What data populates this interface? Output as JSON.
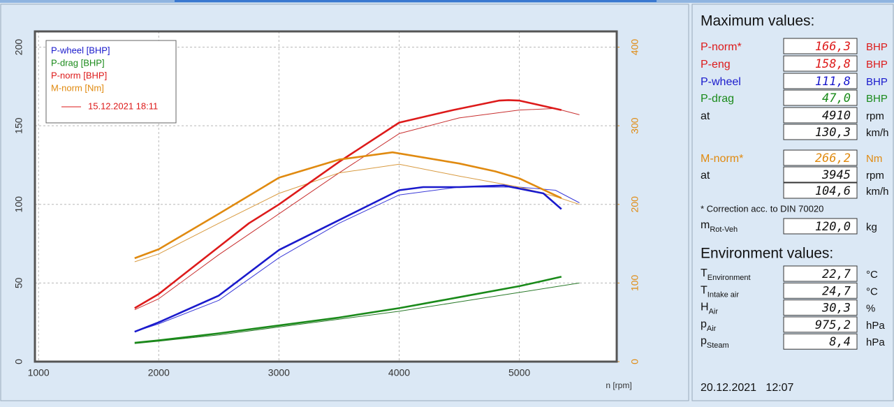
{
  "chart_data": {
    "type": "line",
    "xlabel": "n [rpm]",
    "xlim": [
      970,
      5810
    ],
    "xticks": [
      1000,
      2000,
      3000,
      4000,
      5000
    ],
    "ylim": [
      0,
      210
    ],
    "yticks": [
      0,
      50,
      100,
      150,
      200
    ],
    "y2lim": [
      0,
      420
    ],
    "y2ticks": [
      0,
      100,
      200,
      300,
      400
    ],
    "grid": true,
    "legend_position": "upper left",
    "series": [
      {
        "name": "P-wheel [BHP]",
        "color": "#1a1acc",
        "x": [
          1800,
          2000,
          2500,
          3000,
          3500,
          4000,
          4200,
          4500,
          4870,
          5200,
          5350
        ],
        "values": [
          19,
          25,
          42,
          71,
          90,
          109,
          111,
          111,
          112,
          107,
          97
        ]
      },
      {
        "name": "P-drag [BHP]",
        "color": "#1a8a1a",
        "x": [
          1800,
          2000,
          2500,
          3000,
          3500,
          4000,
          4500,
          5000,
          5350
        ],
        "values": [
          12,
          13.5,
          18,
          23,
          28,
          34,
          41,
          48,
          54
        ]
      },
      {
        "name": "P-norm [BHP]",
        "color": "#dd1a1a",
        "x": [
          1800,
          2000,
          2500,
          2750,
          3000,
          3500,
          4000,
          4450,
          4830,
          4910,
          5000,
          5350
        ],
        "values": [
          34,
          43,
          73,
          88,
          100,
          127,
          152,
          160,
          166,
          166.3,
          166,
          160
        ]
      },
      {
        "name": "M-norm [Nm]",
        "color": "#e08a10",
        "axis": "y2",
        "x": [
          1800,
          2000,
          2500,
          3000,
          3500,
          3945,
          4500,
          4800,
          5000,
          5350
        ],
        "values": [
          131.5,
          143,
          188,
          234,
          257,
          266.2,
          252,
          242,
          233,
          208
        ]
      }
    ],
    "comparison": {
      "name": "15.12.2021 18:11",
      "color": "#dd1a1a",
      "series": [
        {
          "color": "#3a3ad8",
          "x": [
            1800,
            2000,
            2500,
            3000,
            3500,
            4000,
            4500,
            5000,
            5300,
            5500
          ],
          "values": [
            19,
            24,
            39,
            66,
            88,
            106,
            111,
            111,
            109,
            101
          ]
        },
        {
          "color": "#2a7a2a",
          "x": [
            1800,
            2000,
            2500,
            3000,
            3500,
            4000,
            4500,
            5000,
            5500
          ],
          "values": [
            11.5,
            13,
            17,
            22,
            27,
            32,
            38,
            44,
            50
          ]
        },
        {
          "color": "#c83030",
          "x": [
            1800,
            2000,
            2500,
            3000,
            3500,
            4000,
            4500,
            5000,
            5300,
            5500
          ],
          "values": [
            33,
            40,
            68,
            94,
            120,
            145,
            155,
            160,
            161,
            157
          ]
        },
        {
          "color": "#d89a40",
          "axis": "y2",
          "x": [
            1800,
            2000,
            2500,
            3000,
            3500,
            4000,
            4500,
            5000,
            5300,
            5500
          ],
          "values": [
            127,
            137,
            176,
            214,
            240,
            251,
            236,
            222,
            210,
            200
          ]
        }
      ]
    }
  },
  "max_panel": {
    "title": "Maximum values:",
    "rows": [
      {
        "label": "P-norm*",
        "value": "166,3",
        "unit": "BHP",
        "color": "#dd1a1a"
      },
      {
        "label": "P-eng",
        "value": "158,8",
        "unit": "BHP",
        "color": "#dd1a1a"
      },
      {
        "label": "P-wheel",
        "value": "111,8",
        "unit": "BHP",
        "color": "#1a1acc"
      },
      {
        "label": "P-drag",
        "value": "47,0",
        "unit": "BHP",
        "color": "#1a8a1a"
      },
      {
        "label": "at",
        "value": "4910",
        "unit": "rpm",
        "color": "#111111"
      },
      {
        "value": "130,3",
        "unit": "km/h",
        "color": "#111111"
      },
      {
        "label": "M-norm*",
        "value": "266,2",
        "unit": "Nm",
        "color": "#e08a10"
      },
      {
        "label": "at",
        "value": "3945",
        "unit": "rpm",
        "color": "#111111"
      },
      {
        "value": "104,6",
        "unit": "km/h",
        "color": "#111111"
      }
    ],
    "note": "* Correction acc. to DIN 70020",
    "mass": {
      "label": "m",
      "sub": "Rot-Veh",
      "value": "120,0",
      "unit": "kg"
    }
  },
  "environment": {
    "title": "Environment values:",
    "rows": [
      {
        "label": "T",
        "sub": "Environment",
        "value": "22,7",
        "unit": "°C"
      },
      {
        "label": "T",
        "sub": "Intake air",
        "value": "24,7",
        "unit": "°C"
      },
      {
        "label": "H",
        "sub": "Air",
        "value": "30,3",
        "unit": "%"
      },
      {
        "label": "p",
        "sub": "Air",
        "value": "975,2",
        "unit": "hPa"
      },
      {
        "label": "p",
        "sub": "Steam",
        "value": "8,4",
        "unit": "hPa"
      }
    ]
  },
  "timestamp": "20.12.2021   12:07"
}
